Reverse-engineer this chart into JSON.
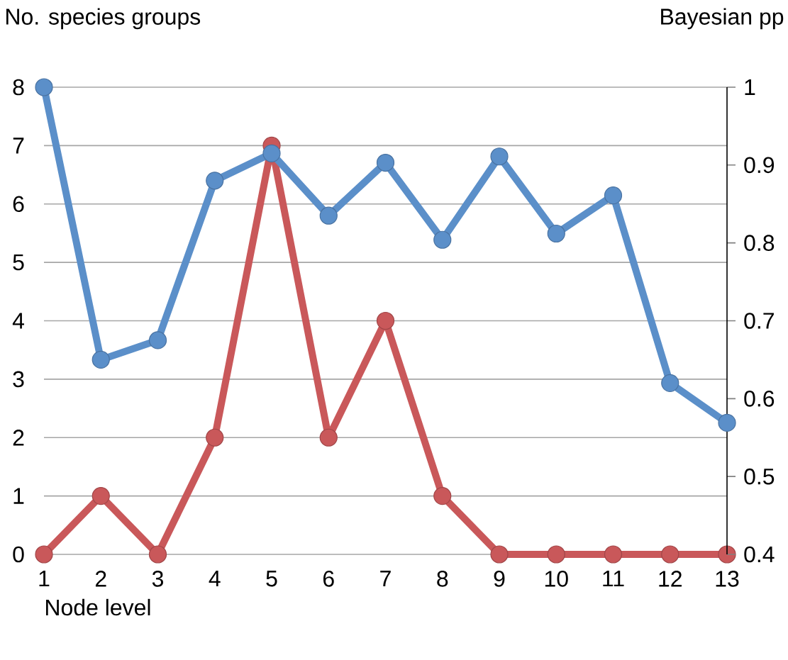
{
  "chart_data": {
    "type": "line",
    "xlabel": "Node level",
    "ylabel": "No. species groups",
    "y2label": "Bayesian pp",
    "categories": [
      "1",
      "2",
      "3",
      "4",
      "5",
      "6",
      "7",
      "8",
      "9",
      "10",
      "11",
      "12",
      "13"
    ],
    "series": [
      {
        "color": "#5b8fc9",
        "axis": "y2",
        "values": [
          1.0,
          0.65,
          0.675,
          0.88,
          0.915,
          0.835,
          0.903,
          0.804,
          0.911,
          0.812,
          0.861,
          0.62,
          0.569
        ]
      },
      {
        "color": "#c9585a",
        "values": [
          0,
          1,
          0,
          2,
          7,
          2,
          4,
          1,
          0,
          0,
          0,
          0,
          0
        ]
      }
    ],
    "ylim": [
      0,
      8
    ],
    "yticks": [
      0,
      1,
      2,
      3,
      4,
      5,
      6,
      7,
      8
    ],
    "y2lim": [
      0.4,
      1
    ],
    "y2ticks": [
      0.4,
      0.5,
      0.6,
      0.7,
      0.8,
      0.9,
      1
    ],
    "grid": "y",
    "marker": "circle",
    "line_style": "solid"
  }
}
